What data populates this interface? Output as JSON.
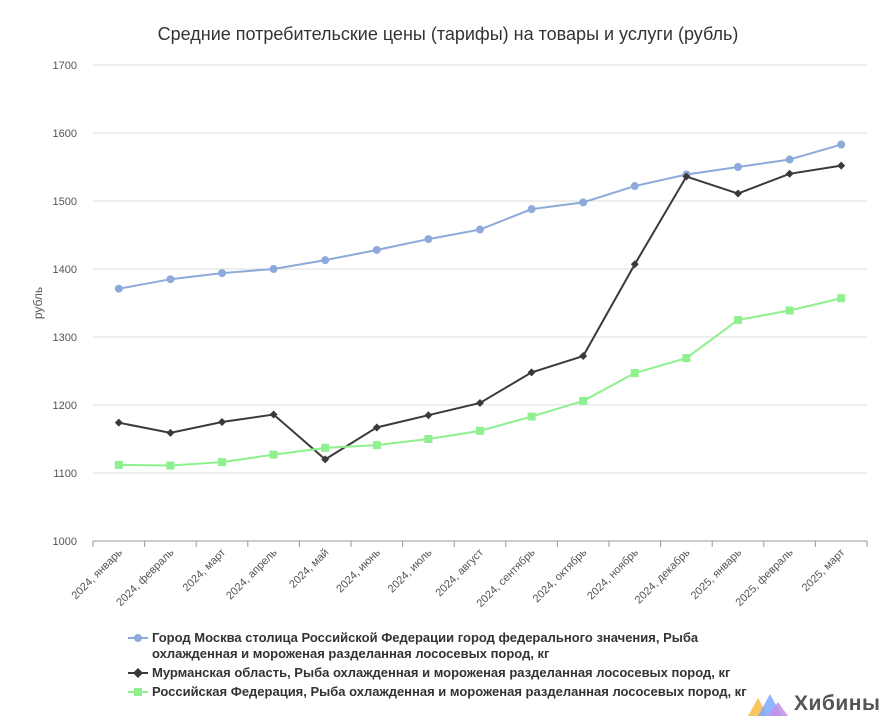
{
  "title": "Средние потребительские цены (тарифы) на товары и услуги (рубль)",
  "brand": {
    "name": "Хибины",
    "logo_icon": "mountains-logo-icon"
  },
  "chart_data": {
    "type": "line",
    "title": "Средние потребительские цены (тарифы) на товары и услуги (рубль)",
    "xlabel": "",
    "ylabel": "рубль",
    "ylim": [
      1000,
      1700
    ],
    "yticks": [
      "1000",
      "1100",
      "1200",
      "1300",
      "1400",
      "1500",
      "1600",
      "1700"
    ],
    "grid": true,
    "legend_position": "bottom",
    "categories": [
      "2024, январь",
      "2024, февраль",
      "2024, март",
      "2024, апрель",
      "2024, май",
      "2024, июнь",
      "2024, июль",
      "2024, август",
      "2024, сентябрь",
      "2024, октябрь",
      "2024, ноябрь",
      "2024, декабрь",
      "2025, январь",
      "2025, февраль",
      "2025, март"
    ],
    "series": [
      {
        "name": "Город Москва столица Российской Федерации город федерального значения, Рыба охлажденная и мороженая разделанная лососевых пород, кг",
        "color": "#8eaadb",
        "marker": "circle",
        "values": [
          1371,
          1385,
          1394,
          1400,
          1413,
          1428,
          1444,
          1458,
          1488,
          1498,
          1522,
          1539,
          1550,
          1561,
          1583
        ]
      },
      {
        "name": "Мурманская область, Рыба охлажденная и мороженая разделанная лососевых пород, кг",
        "color": "#3a3a3a",
        "marker": "diamond",
        "values": [
          1174,
          1159,
          1175,
          1186,
          1120,
          1167,
          1185,
          1203,
          1248,
          1272,
          1407,
          1536,
          1511,
          1540,
          1552
        ]
      },
      {
        "name": "Российская Федерация, Рыба охлажденная и мороженая разделанная лососевых пород, кг",
        "color": "#8ef08e",
        "marker": "square",
        "values": [
          1112,
          1111,
          1116,
          1127,
          1137,
          1141,
          1150,
          1162,
          1183,
          1206,
          1247,
          1269,
          1325,
          1339,
          1357
        ]
      }
    ]
  }
}
